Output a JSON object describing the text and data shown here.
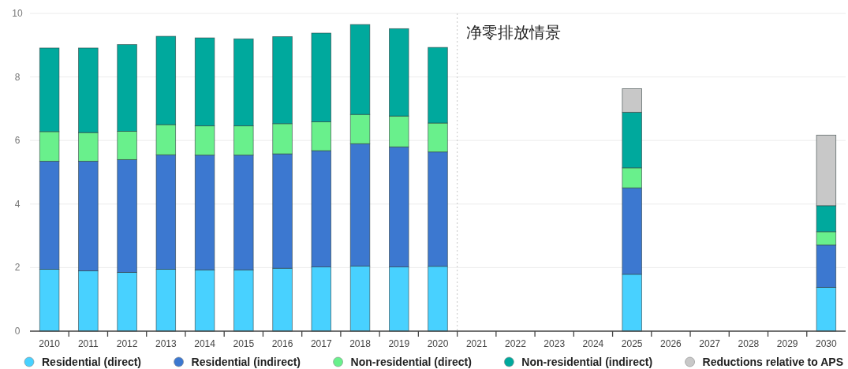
{
  "chart_data": {
    "type": "bar",
    "stacked": true,
    "x": [
      2010,
      2011,
      2012,
      2013,
      2014,
      2015,
      2016,
      2017,
      2018,
      2019,
      2020,
      2021,
      2022,
      2023,
      2024,
      2025,
      2026,
      2027,
      2028,
      2029,
      2030
    ],
    "xlim": [
      2009.5,
      2030.5
    ],
    "xticks": [
      2010,
      2011,
      2012,
      2013,
      2014,
      2015,
      2016,
      2017,
      2018,
      2019,
      2020,
      2021,
      2022,
      2023,
      2024,
      2025,
      2026,
      2027,
      2028,
      2029,
      2030
    ],
    "ylim": [
      0,
      10
    ],
    "yticks": [
      0,
      2,
      4,
      6,
      8,
      10
    ],
    "grid": "y",
    "legend": "bottom",
    "series": [
      {
        "name": "Residential (direct)",
        "color": "#48d1ff",
        "values": [
          1.95,
          1.9,
          1.85,
          1.95,
          1.93,
          1.93,
          1.98,
          2.02,
          2.05,
          2.02,
          2.04,
          null,
          null,
          null,
          null,
          1.79,
          null,
          null,
          null,
          null,
          1.38
        ]
      },
      {
        "name": "Residential (indirect)",
        "color": "#3c78d0",
        "values": [
          3.4,
          3.45,
          3.55,
          3.6,
          3.61,
          3.61,
          3.6,
          3.66,
          3.85,
          3.78,
          3.6,
          null,
          null,
          null,
          null,
          2.72,
          null,
          null,
          null,
          null,
          1.33
        ]
      },
      {
        "name": "Non-residential (direct)",
        "color": "#69f08c",
        "values": [
          0.93,
          0.9,
          0.89,
          0.95,
          0.92,
          0.92,
          0.95,
          0.91,
          0.92,
          0.97,
          0.91,
          null,
          null,
          null,
          null,
          0.63,
          null,
          null,
          null,
          null,
          0.42
        ]
      },
      {
        "name": "Non-residential (indirect)",
        "color": "#00a99d",
        "values": [
          2.63,
          2.66,
          2.73,
          2.78,
          2.77,
          2.74,
          2.74,
          2.79,
          2.83,
          2.75,
          2.38,
          null,
          null,
          null,
          null,
          1.75,
          null,
          null,
          null,
          null,
          0.82
        ]
      },
      {
        "name": "Reductions relative to APS",
        "color": "#c8c8c8",
        "values": [
          null,
          null,
          null,
          null,
          null,
          null,
          null,
          null,
          null,
          null,
          null,
          null,
          null,
          null,
          null,
          0.74,
          null,
          null,
          null,
          null,
          2.22
        ]
      }
    ],
    "ref_lines": [
      {
        "axis": "x",
        "value": 2020.5,
        "label": "净零排放情景",
        "color": "#c8c8c8",
        "line_style": "dotted"
      }
    ]
  }
}
